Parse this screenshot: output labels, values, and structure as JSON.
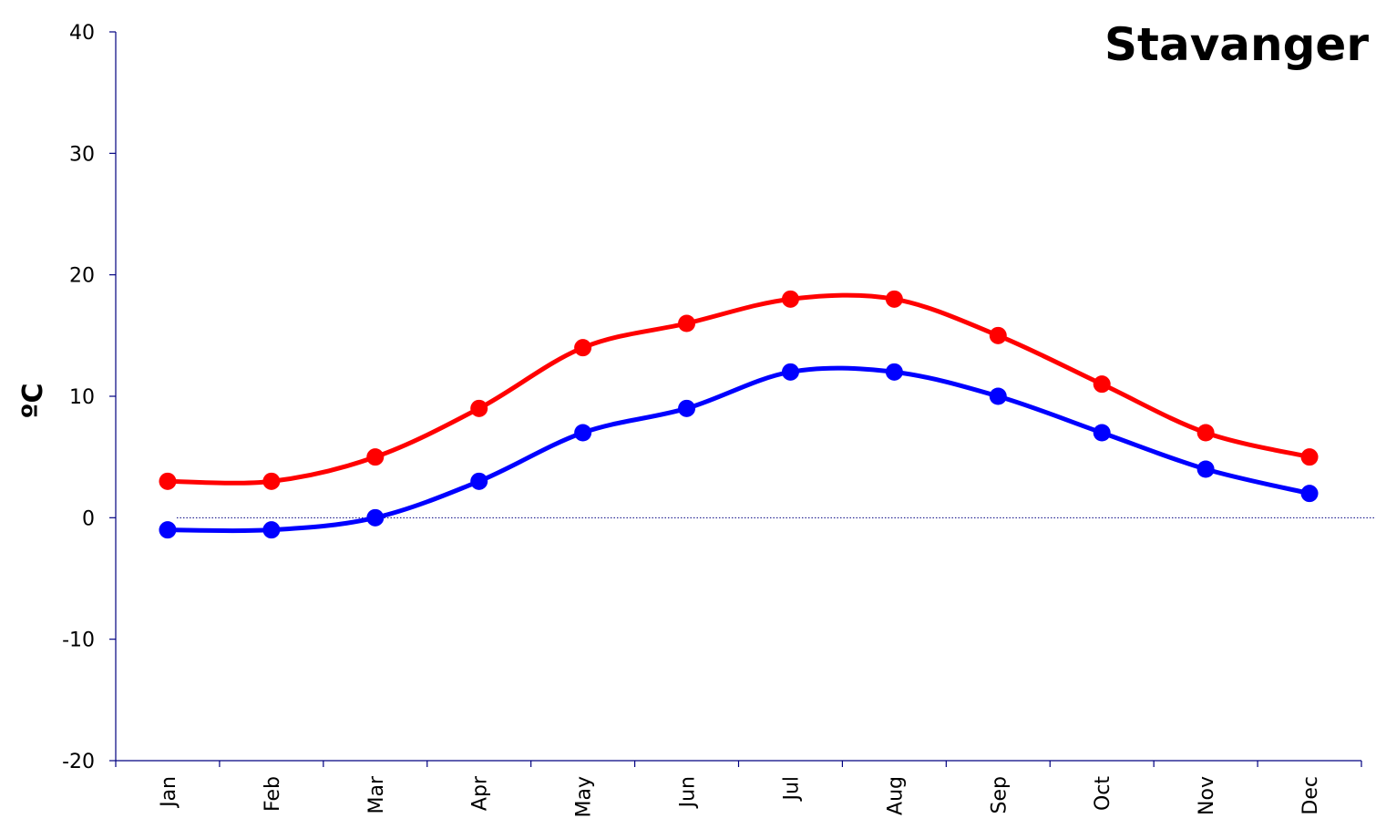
{
  "chart_data": {
    "type": "line",
    "title": "Stavanger",
    "xlabel": "",
    "ylabel": "ºC",
    "categories": [
      "Jan",
      "Feb",
      "Mar",
      "Apr",
      "May",
      "Jun",
      "Jul",
      "Aug",
      "Sep",
      "Oct",
      "Nov",
      "Dec"
    ],
    "ylim": [
      -20,
      40
    ],
    "yticks": [
      "40",
      "30",
      "20",
      "10",
      "0",
      "-10",
      "-20"
    ],
    "grid": false,
    "zero_line": true,
    "series": [
      {
        "values": [
          3,
          3,
          5,
          9,
          14,
          16,
          18,
          18,
          15,
          11,
          7,
          5
        ],
        "color": "#ff0000"
      },
      {
        "values": [
          -1,
          -1,
          0,
          3,
          7,
          9,
          12,
          12,
          10,
          7,
          4,
          2
        ],
        "color": "#0000ff"
      }
    ]
  }
}
